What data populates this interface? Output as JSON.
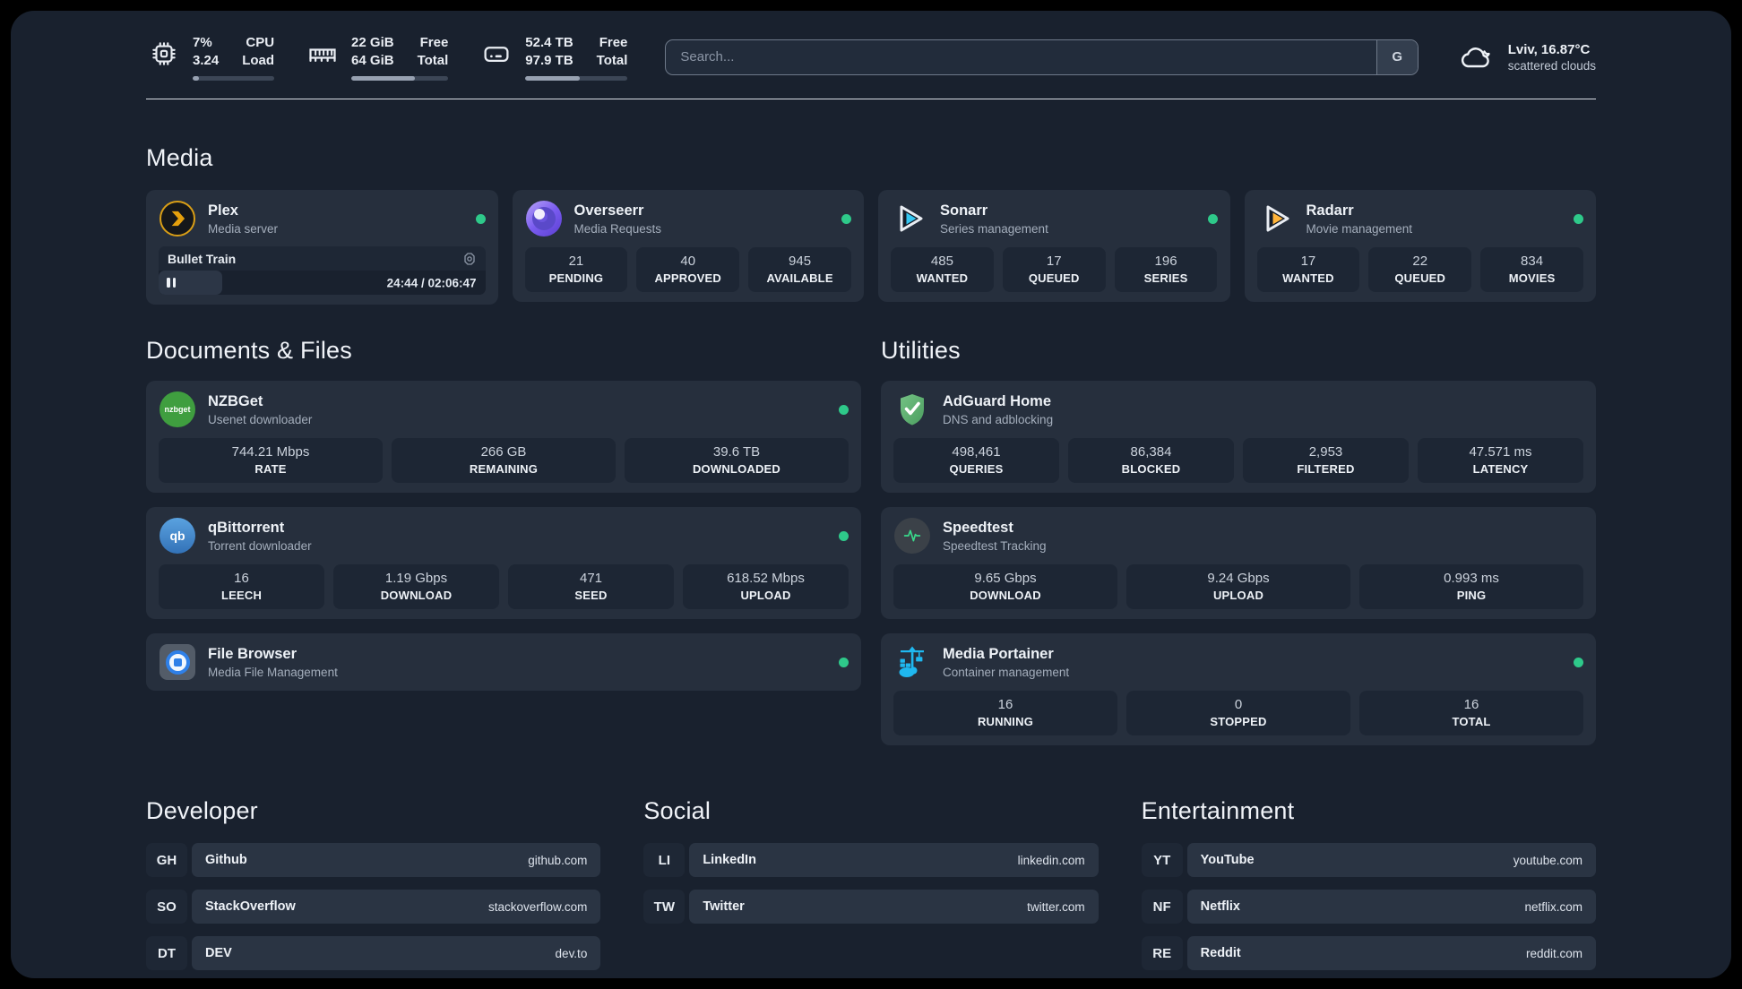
{
  "colors": {
    "status_online": "#2ec98a",
    "accent_plex": "#e5a00d",
    "accent_sonarr": "#35c7f2",
    "accent_radarr": "#ffb43a",
    "accent_nzbget": "#3f9e3f",
    "accent_adguard": "#5fae6e",
    "accent_speedtest": "#39d98a",
    "accent_portainer": "#1fb8f0",
    "accent_filebrowser": "#2f80e8"
  },
  "topbar": {
    "cpu": {
      "line1": "7%",
      "line2": "3.24",
      "label1": "CPU",
      "label2": "Load",
      "progress": 8
    },
    "memory": {
      "line1": "22 GiB",
      "line2": "64 GiB",
      "label1": "Free",
      "label2": "Total",
      "progress": 66
    },
    "storage": {
      "line1": "52.4 TB",
      "line2": "97.9 TB",
      "label1": "Free",
      "label2": "Total",
      "progress": 53
    },
    "search": {
      "placeholder": "Search...",
      "engine_label": "G"
    },
    "weather": {
      "location": "Lviv, 16.87°C",
      "condition": "scattered clouds"
    }
  },
  "media": {
    "title": "Media",
    "plex": {
      "name": "Plex",
      "desc": "Media server",
      "track": "Bullet Train",
      "time": "24:44 / 02:06:47",
      "progress": 19.5
    },
    "overseerr": {
      "name": "Overseerr",
      "desc": "Media Requests",
      "stats": [
        {
          "value": "21",
          "label": "PENDING"
        },
        {
          "value": "40",
          "label": "APPROVED"
        },
        {
          "value": "945",
          "label": "AVAILABLE"
        }
      ]
    },
    "sonarr": {
      "name": "Sonarr",
      "desc": "Series management",
      "stats": [
        {
          "value": "485",
          "label": "WANTED"
        },
        {
          "value": "17",
          "label": "QUEUED"
        },
        {
          "value": "196",
          "label": "SERIES"
        }
      ]
    },
    "radarr": {
      "name": "Radarr",
      "desc": "Movie management",
      "stats": [
        {
          "value": "17",
          "label": "WANTED"
        },
        {
          "value": "22",
          "label": "QUEUED"
        },
        {
          "value": "834",
          "label": "MOVIES"
        }
      ]
    }
  },
  "documents": {
    "title": "Documents & Files",
    "nzbget": {
      "name": "NZBGet",
      "desc": "Usenet downloader",
      "icon_label": "nzbget",
      "stats": [
        {
          "value": "744.21 Mbps",
          "label": "RATE"
        },
        {
          "value": "266 GB",
          "label": "REMAINING"
        },
        {
          "value": "39.6 TB",
          "label": "DOWNLOADED"
        }
      ]
    },
    "qbittorrent": {
      "name": "qBittorrent",
      "desc": "Torrent downloader",
      "icon_label": "qb",
      "stats": [
        {
          "value": "16",
          "label": "LEECH"
        },
        {
          "value": "1.19 Gbps",
          "label": "DOWNLOAD"
        },
        {
          "value": "471",
          "label": "SEED"
        },
        {
          "value": "618.52 Mbps",
          "label": "UPLOAD"
        }
      ]
    },
    "filebrowser": {
      "name": "File Browser",
      "desc": "Media File Management"
    }
  },
  "utilities": {
    "title": "Utilities",
    "adguard": {
      "name": "AdGuard Home",
      "desc": "DNS and adblocking",
      "stats": [
        {
          "value": "498,461",
          "label": "QUERIES"
        },
        {
          "value": "86,384",
          "label": "BLOCKED"
        },
        {
          "value": "2,953",
          "label": "FILTERED"
        },
        {
          "value": "47.571 ms",
          "label": "LATENCY"
        }
      ]
    },
    "speedtest": {
      "name": "Speedtest",
      "desc": "Speedtest Tracking",
      "stats": [
        {
          "value": "9.65 Gbps",
          "label": "DOWNLOAD"
        },
        {
          "value": "9.24 Gbps",
          "label": "UPLOAD"
        },
        {
          "value": "0.993 ms",
          "label": "PING"
        }
      ]
    },
    "portainer": {
      "name": "Media Portainer",
      "desc": "Container management",
      "stats": [
        {
          "value": "16",
          "label": "RUNNING"
        },
        {
          "value": "0",
          "label": "STOPPED"
        },
        {
          "value": "16",
          "label": "TOTAL"
        }
      ]
    }
  },
  "bookmarks": {
    "developer": {
      "title": "Developer",
      "links": [
        {
          "abbr": "GH",
          "name": "Github",
          "url": "github.com"
        },
        {
          "abbr": "SO",
          "name": "StackOverflow",
          "url": "stackoverflow.com"
        },
        {
          "abbr": "DT",
          "name": "DEV",
          "url": "dev.to"
        }
      ]
    },
    "social": {
      "title": "Social",
      "links": [
        {
          "abbr": "LI",
          "name": "LinkedIn",
          "url": "linkedin.com"
        },
        {
          "abbr": "TW",
          "name": "Twitter",
          "url": "twitter.com"
        }
      ]
    },
    "entertainment": {
      "title": "Entertainment",
      "links": [
        {
          "abbr": "YT",
          "name": "YouTube",
          "url": "youtube.com"
        },
        {
          "abbr": "NF",
          "name": "Netflix",
          "url": "netflix.com"
        },
        {
          "abbr": "RE",
          "name": "Reddit",
          "url": "reddit.com"
        }
      ]
    }
  }
}
